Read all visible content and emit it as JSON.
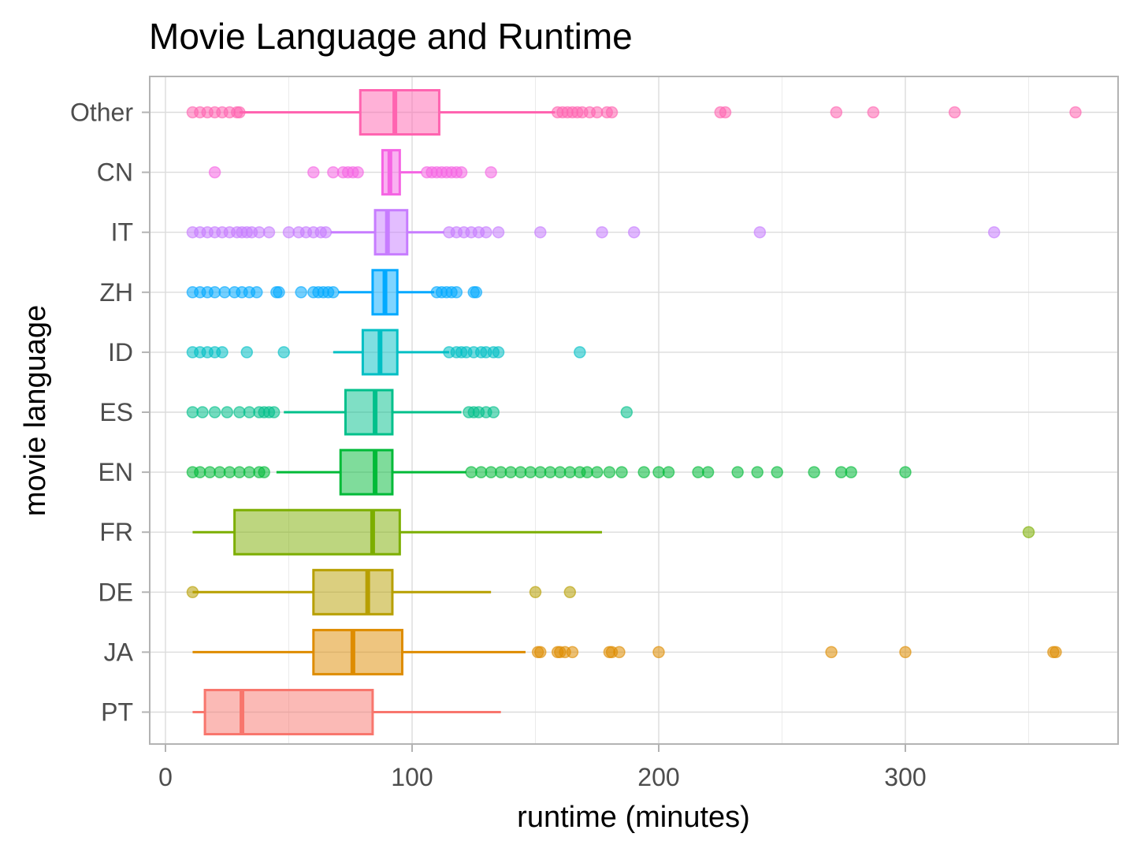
{
  "chart_data": {
    "type": "boxplot",
    "orientation": "horizontal",
    "title": "Movie Language and Runtime",
    "xlabel": "runtime (minutes)",
    "ylabel": "movie language",
    "xlim": [
      -6,
      388
    ],
    "xticks": [
      0,
      100,
      200,
      300
    ],
    "xtick_labels": [
      "0",
      "100",
      "200",
      "300"
    ],
    "grid": true,
    "legend": "none",
    "categories": [
      "PT",
      "JA",
      "DE",
      "FR",
      "EN",
      "ES",
      "ID",
      "ZH",
      "IT",
      "CN",
      "Other"
    ],
    "series": [
      {
        "category": "PT",
        "color": "#F8766D",
        "min": 11,
        "q1": 16,
        "median": 31,
        "q3": 84,
        "max": 136,
        "outliers": []
      },
      {
        "category": "JA",
        "color": "#DE8C00",
        "min": 11,
        "q1": 60,
        "median": 76,
        "q3": 96,
        "max": 146,
        "outliers": [
          151,
          152,
          159,
          160,
          162,
          165,
          180,
          181,
          184,
          200,
          270,
          300,
          360,
          361
        ]
      },
      {
        "category": "DE",
        "color": "#B79F00",
        "min": 11,
        "q1": 60,
        "median": 82,
        "q3": 92,
        "max": 132,
        "outliers": [
          11,
          150,
          164
        ]
      },
      {
        "category": "FR",
        "color": "#7CAE00",
        "min": 11,
        "q1": 28,
        "median": 84,
        "q3": 95,
        "max": 177,
        "outliers": [
          350
        ]
      },
      {
        "category": "EN",
        "color": "#00BA38",
        "min": 45,
        "q1": 71,
        "median": 85,
        "q3": 92,
        "max": 122,
        "outliers": [
          11,
          14,
          18,
          22,
          26,
          30,
          34,
          38,
          40,
          124,
          128,
          132,
          136,
          140,
          144,
          148,
          152,
          156,
          160,
          164,
          168,
          171,
          175,
          180,
          185,
          194,
          200,
          204,
          216,
          220,
          232,
          240,
          248,
          263,
          274,
          278,
          300
        ]
      },
      {
        "category": "ES",
        "color": "#00C08B",
        "min": 48,
        "q1": 73,
        "median": 85,
        "q3": 92,
        "max": 120,
        "outliers": [
          11,
          15,
          20,
          25,
          30,
          34,
          38,
          40,
          42,
          44,
          123,
          125,
          127,
          130,
          133,
          187
        ]
      },
      {
        "category": "ID",
        "color": "#00BFC4",
        "min": 68,
        "q1": 80,
        "median": 87,
        "q3": 94,
        "max": 115,
        "outliers": [
          11,
          14,
          17,
          20,
          23,
          33,
          48,
          115,
          118,
          120,
          122,
          125,
          128,
          130,
          133,
          135,
          168
        ]
      },
      {
        "category": "ZH",
        "color": "#00A9FF",
        "min": 70,
        "q1": 84,
        "median": 89,
        "q3": 94,
        "max": 109,
        "outliers": [
          11,
          14,
          17,
          20,
          24,
          28,
          31,
          34,
          37,
          45,
          46,
          55,
          60,
          62,
          64,
          66,
          68,
          110,
          112,
          114,
          116,
          118,
          125,
          126
        ]
      },
      {
        "category": "IT",
        "color": "#C77CFF",
        "min": 67,
        "q1": 85,
        "median": 90,
        "q3": 98,
        "max": 113,
        "outliers": [
          11,
          14,
          17,
          20,
          23,
          26,
          29,
          31,
          33,
          35,
          38,
          42,
          50,
          54,
          57,
          60,
          63,
          65,
          115,
          118,
          121,
          124,
          127,
          130,
          135,
          152,
          177,
          190,
          241,
          336
        ]
      },
      {
        "category": "CN",
        "color": "#F564E3",
        "min": 88,
        "q1": 88,
        "median": 91,
        "q3": 95,
        "max": 104,
        "outliers": [
          20,
          60,
          68,
          72,
          74,
          76,
          78,
          106,
          108,
          110,
          112,
          114,
          116,
          118,
          120,
          132
        ]
      },
      {
        "category": "Other",
        "color": "#FF64B0",
        "min": 30,
        "q1": 79,
        "median": 93,
        "q3": 111,
        "max": 158,
        "outliers": [
          11,
          14,
          17,
          20,
          23,
          26,
          29,
          30,
          159,
          161,
          163,
          165,
          167,
          169,
          172,
          175,
          179,
          181,
          225,
          227,
          272,
          287,
          320,
          369
        ]
      }
    ]
  }
}
